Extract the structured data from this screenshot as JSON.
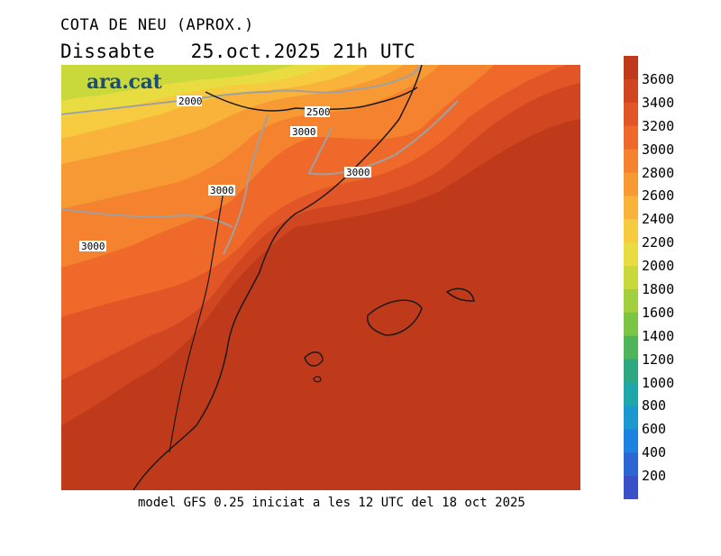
{
  "header": {
    "title": "COTA DE NEU (APROX.)",
    "day": "Dissabte",
    "date_time": "25.oct.2025 21h UTC"
  },
  "brand": {
    "logo_text": "ara.cat",
    "logo_color": "#1a4d7a"
  },
  "footer": {
    "model_info": "model GFS 0.25 iniciat a les 12 UTC del 18 oct 2025"
  },
  "map": {
    "contour_labels": [
      "2000",
      "2500",
      "3000",
      "3000",
      "3000",
      "3000"
    ],
    "ocean_color": "#bf3a1a",
    "coastline_color": "#1a1a1a",
    "border_color": "#a0a0a0"
  },
  "legend": {
    "ticks": [
      "3600",
      "3400",
      "3200",
      "3000",
      "2800",
      "2600",
      "2400",
      "2200",
      "2000",
      "1800",
      "1600",
      "1400",
      "1200",
      "1000",
      "800",
      "600",
      "400",
      "200"
    ],
    "colors": [
      "#bf3a1a",
      "#cf4620",
      "#e15526",
      "#ef6a2a",
      "#f5822e",
      "#f89a34",
      "#f9b23a",
      "#f7cb3f",
      "#e9dc41",
      "#c9d93c",
      "#a1cf3e",
      "#7cc444",
      "#4fb45a",
      "#2ea783",
      "#1ea7a9",
      "#1a98cf",
      "#1d83e0",
      "#2c66d2",
      "#3a50c8"
    ]
  }
}
